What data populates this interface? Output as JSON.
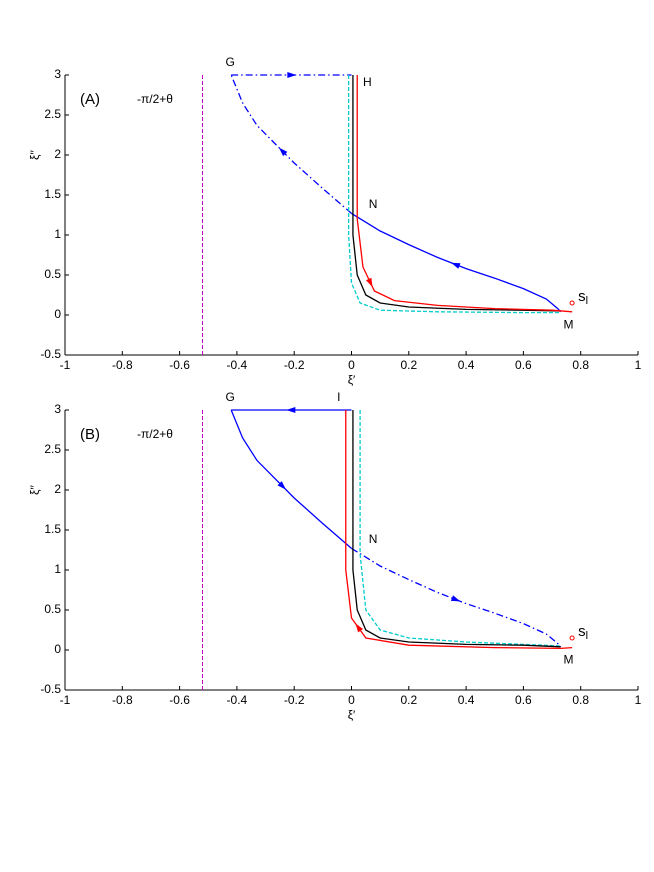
{
  "chart_data": [
    {
      "type": "line",
      "panel_label": "(A)",
      "annotation": "-π/2+θ",
      "xlabel": "ξ′",
      "ylabel": "ξ′′",
      "xlim": [
        -1,
        1
      ],
      "ylim": [
        -0.5,
        3
      ],
      "xticks": [
        -1,
        -0.8,
        -0.6,
        -0.4,
        -0.2,
        0,
        0.2,
        0.4,
        0.6,
        0.8,
        1
      ],
      "yticks": [
        -0.5,
        0,
        0.5,
        1,
        1.5,
        2,
        2.5,
        3
      ],
      "vline": {
        "x": -0.52,
        "color": "#c000c0"
      },
      "series": [
        {
          "color": "#0000ff",
          "style": "solid",
          "arrow": true,
          "x": [
            0.73,
            0.72,
            0.68,
            0.6,
            0.5,
            0.4,
            0.3,
            0.2,
            0.1,
            0
          ],
          "y": [
            0.04,
            0.08,
            0.2,
            0.33,
            0.46,
            0.58,
            0.72,
            0.88,
            1.05,
            1.27
          ]
        },
        {
          "color": "#0000ff",
          "style": "dashdot",
          "arrow": true,
          "x": [
            0,
            -0.1,
            -0.2,
            -0.33,
            -0.38,
            -0.42
          ],
          "y": [
            1.27,
            1.58,
            1.9,
            2.37,
            2.65,
            3
          ]
        },
        {
          "color": "#0000ff",
          "style": "dashdot",
          "arrow": true,
          "x": [
            -0.42,
            0
          ],
          "y": [
            3,
            3
          ]
        },
        {
          "color": "#00cccc",
          "style": "dashed",
          "arrow": false,
          "x": [
            -0.01,
            -0.01,
            0,
            0.03,
            0.1,
            0.3,
            0.6,
            0.73
          ],
          "y": [
            3,
            1.0,
            0.4,
            0.15,
            0.06,
            0.04,
            0.03,
            0.03
          ]
        },
        {
          "color": "#000000",
          "style": "solid",
          "arrow": false,
          "x": [
            0.005,
            0.005,
            0.02,
            0.05,
            0.1,
            0.2,
            0.4,
            0.6,
            0.73
          ],
          "y": [
            3,
            1.0,
            0.5,
            0.25,
            0.15,
            0.1,
            0.07,
            0.06,
            0.05
          ]
        },
        {
          "color": "#ff0000",
          "style": "solid",
          "arrow": true,
          "x": [
            0.02,
            0.02,
            0.02,
            0.04,
            0.08,
            0.15,
            0.3,
            0.5,
            0.7,
            0.77
          ],
          "y": [
            3,
            2.1,
            1.2,
            0.6,
            0.3,
            0.18,
            0.12,
            0.08,
            0.06,
            0.04
          ]
        }
      ],
      "point": {
        "x": 0.77,
        "y": 0.15,
        "color": "#ff0000",
        "label": "s",
        "sub": "l"
      },
      "labels": [
        {
          "text": "G",
          "x": -0.44,
          "y": 3.15
        },
        {
          "text": "H",
          "x": 0.04,
          "y": 2.9
        },
        {
          "text": "N",
          "x": 0.06,
          "y": 1.38
        },
        {
          "text": "M",
          "x": 0.74,
          "y": -0.13
        }
      ]
    },
    {
      "type": "line",
      "panel_label": "(B)",
      "annotation": "-π/2+θ",
      "xlabel": "ξ′",
      "ylabel": "ξ′′",
      "xlim": [
        -1,
        1
      ],
      "ylim": [
        -0.5,
        3
      ],
      "xticks": [
        -1,
        -0.8,
        -0.6,
        -0.4,
        -0.2,
        0,
        0.2,
        0.4,
        0.6,
        0.8,
        1
      ],
      "yticks": [
        -0.5,
        0,
        0.5,
        1,
        1.5,
        2,
        2.5,
        3
      ],
      "vline": {
        "x": -0.52,
        "color": "#c000c0"
      },
      "series": [
        {
          "color": "#0000ff",
          "style": "solid",
          "arrow": true,
          "x": [
            0,
            -0.42
          ],
          "y": [
            3,
            3
          ]
        },
        {
          "color": "#0000ff",
          "style": "solid",
          "arrow": true,
          "x": [
            -0.42,
            -0.38,
            -0.33,
            -0.2,
            -0.1,
            0
          ],
          "y": [
            3,
            2.65,
            2.37,
            1.9,
            1.58,
            1.27
          ]
        },
        {
          "color": "#0000ff",
          "style": "dashdot",
          "arrow": true,
          "x": [
            0,
            0.1,
            0.2,
            0.3,
            0.4,
            0.5,
            0.6,
            0.68,
            0.72,
            0.73
          ],
          "y": [
            1.27,
            1.05,
            0.88,
            0.72,
            0.58,
            0.46,
            0.33,
            0.2,
            0.08,
            0.04
          ]
        },
        {
          "color": "#00cccc",
          "style": "dashed",
          "arrow": false,
          "x": [
            0.03,
            0.03,
            0.05,
            0.1,
            0.2,
            0.4,
            0.6,
            0.73
          ],
          "y": [
            3,
            1.2,
            0.5,
            0.25,
            0.15,
            0.1,
            0.07,
            0.05
          ]
        },
        {
          "color": "#000000",
          "style": "solid",
          "arrow": false,
          "x": [
            0.005,
            0.005,
            0.02,
            0.05,
            0.1,
            0.2,
            0.4,
            0.6,
            0.73
          ],
          "y": [
            3,
            1.0,
            0.5,
            0.25,
            0.15,
            0.1,
            0.07,
            0.06,
            0.04
          ]
        },
        {
          "color": "#ff0000",
          "style": "solid",
          "arrow": true,
          "x": [
            0.77,
            0.73,
            0.5,
            0.2,
            0.05,
            0,
            -0.02,
            -0.02,
            -0.02
          ],
          "y": [
            0.03,
            0.02,
            0.03,
            0.06,
            0.15,
            0.4,
            1.0,
            2.1,
            3
          ]
        }
      ],
      "point": {
        "x": 0.77,
        "y": 0.15,
        "color": "#ff0000",
        "label": "s",
        "sub": "l"
      },
      "labels": [
        {
          "text": "G",
          "x": -0.44,
          "y": 3.15
        },
        {
          "text": "I",
          "x": -0.05,
          "y": 3.15
        },
        {
          "text": "N",
          "x": 0.06,
          "y": 1.38
        },
        {
          "text": "M",
          "x": 0.74,
          "y": -0.13
        }
      ]
    }
  ]
}
